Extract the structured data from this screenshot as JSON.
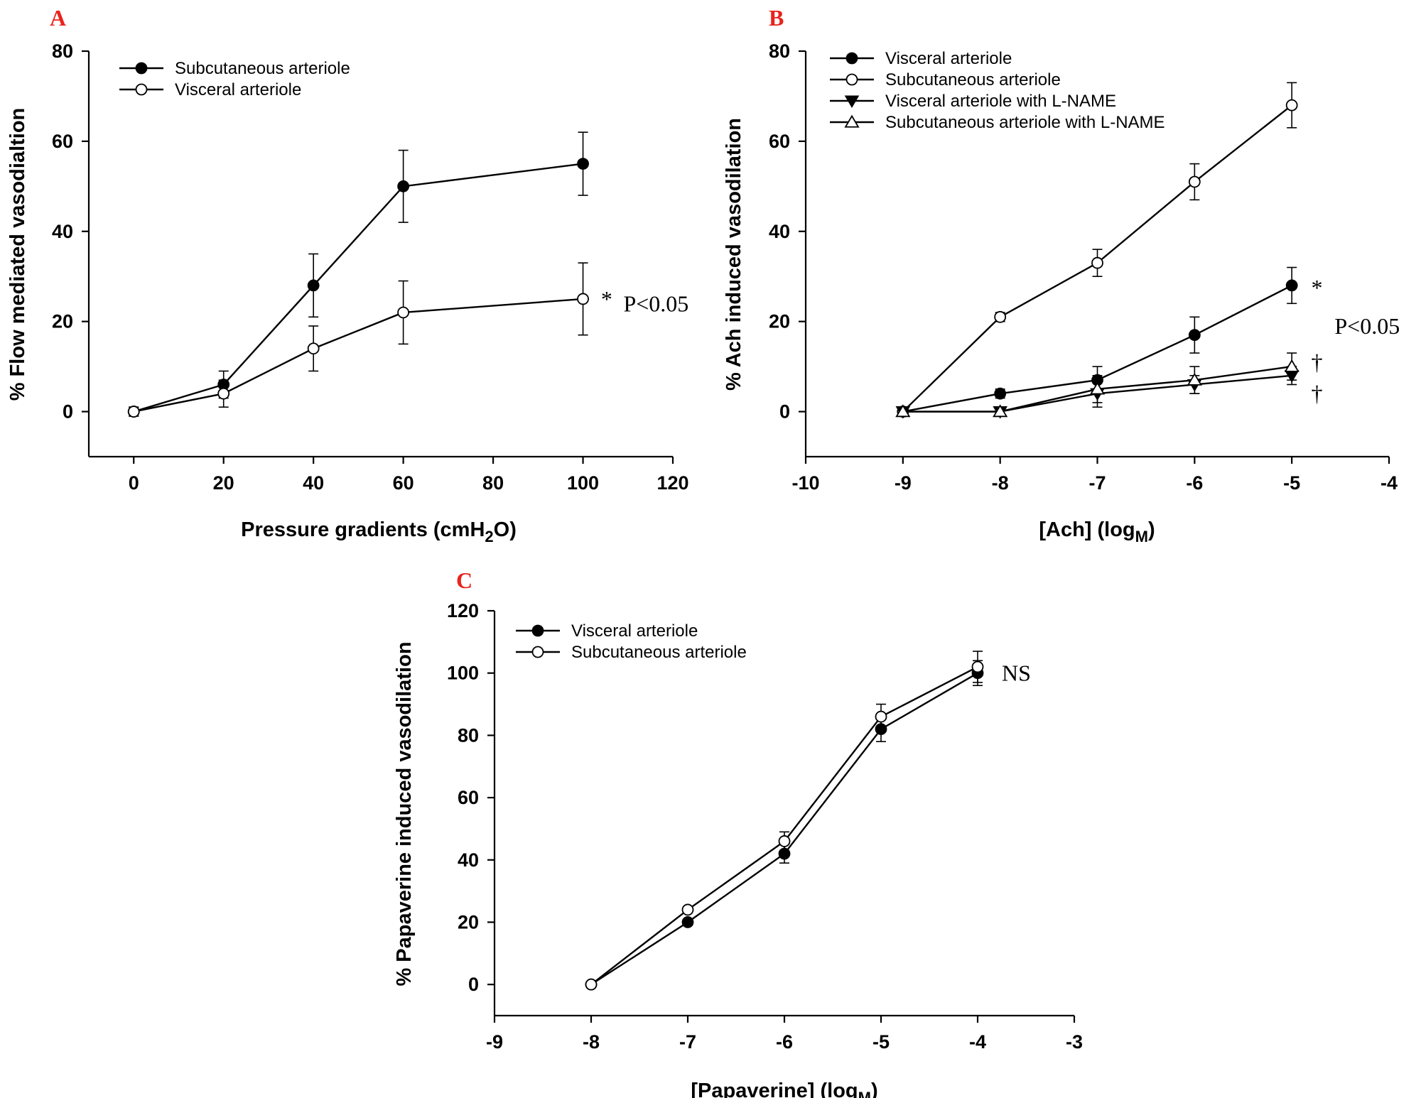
{
  "chart_data": [
    {
      "panel": "A",
      "type": "line",
      "xlabel": "Pressure gradients (cmH",
      "xlabel_sub": "2",
      "xlabel_end": "O)",
      "ylabel": "% Flow mediated vasodialtion",
      "xlim": [
        -10,
        120
      ],
      "ylim": [
        -10,
        80
      ],
      "xticks": [
        0,
        20,
        40,
        60,
        80,
        100,
        120
      ],
      "yticks": [
        0,
        20,
        40,
        60,
        80
      ],
      "legend": "top-left",
      "series": [
        {
          "name": "Subcutaneous arteriole",
          "marker": "filled-circle",
          "x": [
            0,
            20,
            40,
            60,
            100
          ],
          "y": [
            0,
            6,
            28,
            50,
            55
          ],
          "err": [
            1,
            3,
            7,
            8,
            7
          ]
        },
        {
          "name": "Visceral arteriole",
          "marker": "open-circle",
          "x": [
            0,
            20,
            40,
            60,
            100
          ],
          "y": [
            0,
            4,
            14,
            22,
            25
          ],
          "err": [
            1,
            3,
            5,
            7,
            8
          ]
        }
      ],
      "annotations": [
        {
          "text": "*",
          "x": 104,
          "y": 25
        },
        {
          "text": "P<0.05",
          "x": 109,
          "y": 24
        }
      ]
    },
    {
      "panel": "B",
      "type": "line",
      "xlabel": "[Ach] (log",
      "xlabel_sub": "M",
      "xlabel_end": ")",
      "ylabel": "% Ach induced vasodilation",
      "xlim": [
        -10,
        -4
      ],
      "ylim": [
        -10,
        80
      ],
      "xticks": [
        -10,
        -9,
        -8,
        -7,
        -6,
        -5,
        -4
      ],
      "yticks": [
        0,
        20,
        40,
        60,
        80
      ],
      "legend": "top-left",
      "series": [
        {
          "name": "Visceral arteriole",
          "marker": "filled-circle",
          "x": [
            -9,
            -8,
            -7,
            -6,
            -5
          ],
          "y": [
            0,
            4,
            7,
            17,
            28
          ],
          "err": [
            0.5,
            1,
            3,
            4,
            4
          ]
        },
        {
          "name": "Subcutaneous arteriole",
          "marker": "open-circle",
          "x": [
            -9,
            -8,
            -7,
            -6,
            -5
          ],
          "y": [
            0,
            21,
            33,
            51,
            68
          ],
          "err": [
            0.5,
            1,
            3,
            4,
            5
          ]
        },
        {
          "name": "Visceral arteriole with L-NAME",
          "marker": "filled-triangle-down",
          "x": [
            -9,
            -8,
            -7,
            -6,
            -5
          ],
          "y": [
            0,
            0,
            4,
            6,
            8
          ],
          "err": [
            0.5,
            0.5,
            3,
            2,
            2
          ]
        },
        {
          "name": "Subcutaneous arteriole with L-NAME",
          "marker": "open-triangle-up",
          "x": [
            -9,
            -8,
            -7,
            -6,
            -5
          ],
          "y": [
            0,
            0,
            5,
            7,
            10
          ],
          "err": [
            0.5,
            0.5,
            3,
            3,
            3
          ]
        }
      ],
      "annotations": [
        {
          "text": "*",
          "x": -4.8,
          "y": 27.5
        },
        {
          "text": "P<0.05",
          "x": -4.56,
          "y": 19
        },
        {
          "text": "†",
          "x": -4.8,
          "y": 11
        },
        {
          "text": "†",
          "x": -4.8,
          "y": 4
        }
      ]
    },
    {
      "panel": "C",
      "type": "line",
      "xlabel": "[Papaverine] (log",
      "xlabel_sub": "M",
      "xlabel_end": ")",
      "ylabel": "% Papaverine induced vasodilation",
      "xlim": [
        -9,
        -3
      ],
      "ylim": [
        -10,
        120
      ],
      "xticks": [
        -9,
        -8,
        -7,
        -6,
        -5,
        -4,
        -3
      ],
      "yticks": [
        0,
        20,
        40,
        60,
        80,
        100,
        120
      ],
      "legend": "top-left",
      "series": [
        {
          "name": "Visceral arteriole",
          "marker": "filled-circle",
          "x": [
            -8,
            -7,
            -6,
            -5,
            -4
          ],
          "y": [
            0,
            20,
            42,
            82,
            100
          ],
          "err": [
            0.5,
            1,
            3,
            4,
            4
          ]
        },
        {
          "name": "Subcutaneous arteriole",
          "marker": "open-circle",
          "x": [
            -8,
            -7,
            -6,
            -5,
            -4
          ],
          "y": [
            0,
            24,
            46,
            86,
            102
          ],
          "err": [
            0.5,
            1,
            3,
            4,
            5
          ]
        }
      ],
      "annotations": [
        {
          "text": "NS",
          "x": -3.75,
          "y": 100
        }
      ]
    }
  ]
}
